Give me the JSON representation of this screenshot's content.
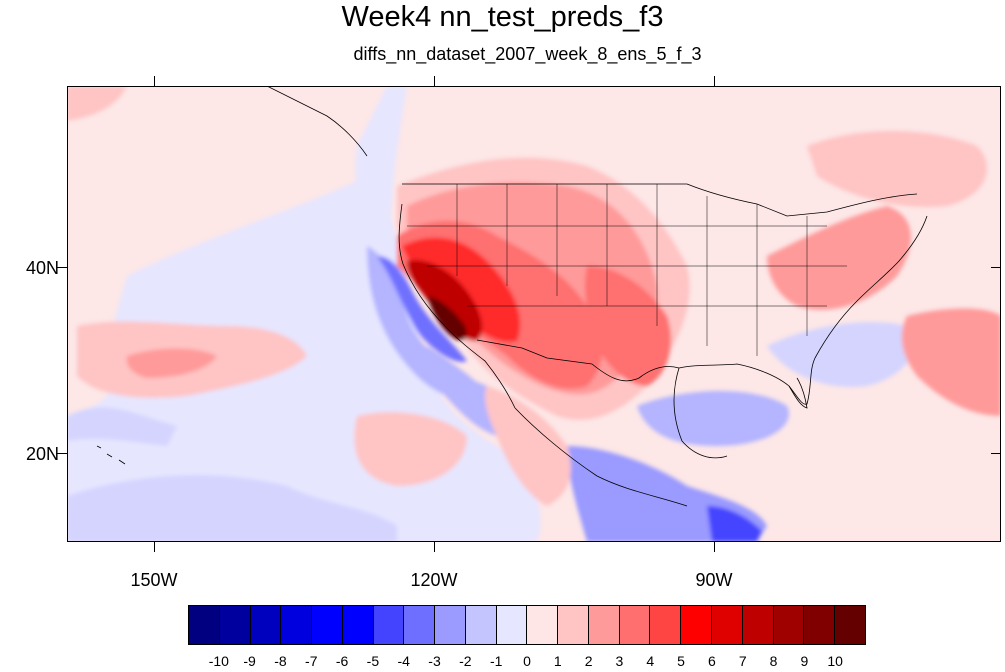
{
  "title": "Week4 nn_test_preds_f3",
  "subtitle": "diffs_nn_dataset_2007_week_8_ens_5_f_3",
  "map": {
    "lat_labels": [
      "40N",
      "20N"
    ],
    "lon_labels": [
      "150W",
      "120W",
      "90W"
    ]
  },
  "colorbar": {
    "labels": [
      "-10",
      "-9",
      "-8",
      "-7",
      "-6",
      "-5",
      "-4",
      "-3",
      "-2",
      "-1",
      "0",
      "1",
      "2",
      "3",
      "4",
      "5",
      "6",
      "7",
      "8",
      "9",
      "10"
    ],
    "colors": [
      "#000080",
      "#00009f",
      "#0000bf",
      "#0000df",
      "#0000ff",
      "#0000ff",
      "#4444ff",
      "#6f6fff",
      "#9a9aff",
      "#c4c4ff",
      "#e6e6ff",
      "#ffe6e6",
      "#ffc4c4",
      "#ff9a9a",
      "#ff6f6f",
      "#ff4444",
      "#ff0000",
      "#df0000",
      "#bf0000",
      "#9f0000",
      "#800000",
      "#650000"
    ]
  }
}
